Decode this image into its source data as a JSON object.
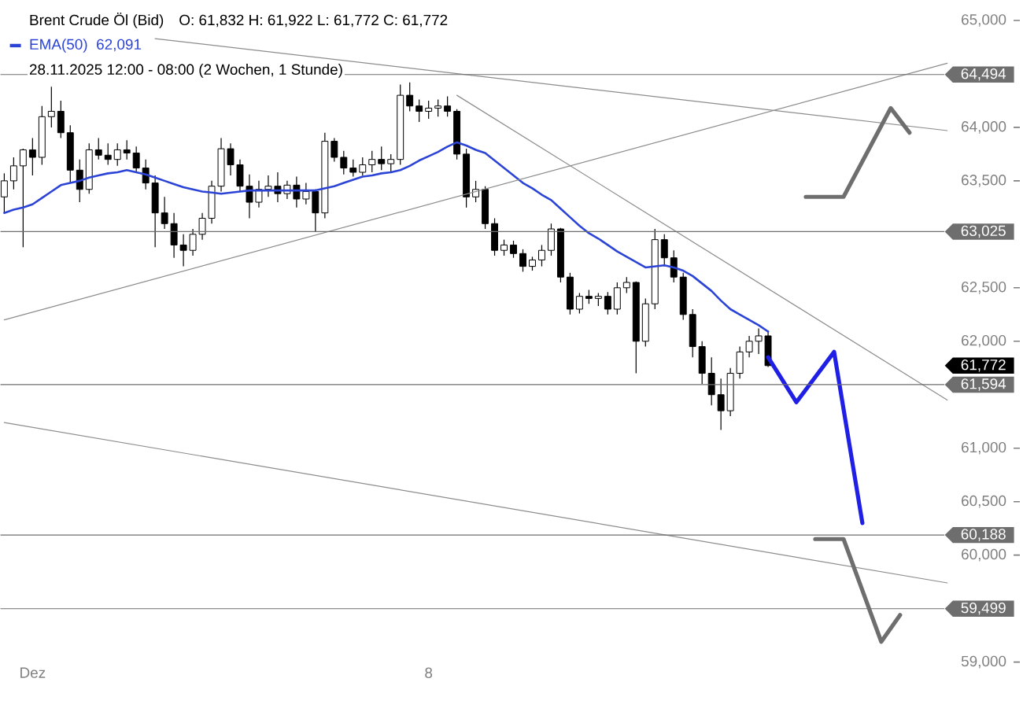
{
  "chart_data": {
    "type": "candlestick",
    "title": "Brent Crude Öl (Bid)",
    "subtitle": "O: 61,832  H: 61,922  L: 61,772  C: 61,772",
    "annotations": [
      "62,091",
      "28.11.2025 12:00 - 08:00  (2 Wochen, 1 Stunde)",
      "61,772"
    ],
    "legend": "top left",
    "categories": [
      null,
      null,
      null,
      "Dez",
      null,
      null,
      null,
      null,
      null,
      null,
      null,
      null,
      null,
      null,
      null,
      null,
      null,
      null,
      null,
      null,
      null,
      null,
      null,
      null,
      null,
      null,
      null,
      null,
      null,
      null,
      null,
      null,
      null,
      null,
      null,
      null,
      null,
      null,
      null,
      null,
      null,
      null,
      null,
      null,
      null,
      "8",
      null,
      null,
      null,
      null,
      null,
      null,
      null,
      null,
      null,
      null,
      null,
      null,
      null,
      null,
      null,
      null,
      null,
      null,
      null,
      null,
      null,
      null,
      null,
      null,
      null,
      null,
      null,
      null,
      null,
      null,
      null,
      null,
      null,
      null,
      null,
      null,
      null,
      null,
      null,
      null,
      null,
      null,
      null,
      null,
      null,
      null,
      null,
      null,
      null,
      null,
      null,
      null,
      null,
      null,
      null,
      null,
      null,
      null,
      null,
      null,
      null,
      null
    ],
    "ylim": [
      59000,
      65000
    ],
    "yticks": [
      {
        "value": 59000,
        "label": "59,000"
      },
      {
        "value": 60000,
        "label": "60,000"
      },
      {
        "value": 60500,
        "label": "60,500"
      },
      {
        "value": 61000,
        "label": "61,000"
      },
      {
        "value": 62000,
        "label": "62,000"
      },
      {
        "value": 62500,
        "label": "62,500"
      },
      {
        "value": 63500,
        "label": "63,500"
      },
      {
        "value": 64000,
        "label": "64,000"
      },
      {
        "value": 65000,
        "label": "65,000"
      }
    ],
    "ref_lines": [
      {
        "axis": "y",
        "value": 64494,
        "label": "64,494",
        "color": "#6e6e6e"
      },
      {
        "axis": "y",
        "value": 63025,
        "label": "63,025",
        "color": "#6e6e6e"
      },
      {
        "axis": "y",
        "value": 61594,
        "label": "61,594",
        "color": "#6e6e6e"
      },
      {
        "axis": "y",
        "value": 60188,
        "label": "60,188",
        "color": "#6e6e6e"
      },
      {
        "axis": "y",
        "value": 59499,
        "label": "59,499",
        "color": "#6e6e6e"
      }
    ],
    "ohlc": [
      [
        63350,
        63570,
        63200,
        63500
      ],
      [
        63500,
        63720,
        63420,
        63640
      ],
      [
        63640,
        63800,
        62880,
        63790
      ],
      [
        63790,
        63900,
        63550,
        63720
      ],
      [
        63720,
        64200,
        63650,
        64100
      ],
      [
        64100,
        64380,
        64000,
        64150
      ],
      [
        64150,
        64250,
        63900,
        63950
      ],
      [
        63950,
        64020,
        63480,
        63600
      ],
      [
        63600,
        63700,
        63300,
        63420
      ],
      [
        63420,
        63850,
        63380,
        63790
      ],
      [
        63790,
        63900,
        63700,
        63740
      ],
      [
        63740,
        63850,
        63650,
        63700
      ],
      [
        63700,
        63850,
        63640,
        63790
      ],
      [
        63790,
        63880,
        63700,
        63760
      ],
      [
        63760,
        63820,
        63580,
        63620
      ],
      [
        63620,
        63700,
        63420,
        63480
      ],
      [
        63480,
        63550,
        62880,
        63200
      ],
      [
        63200,
        63350,
        63050,
        63100
      ],
      [
        63100,
        63200,
        62780,
        62900
      ],
      [
        62900,
        63000,
        62700,
        62850
      ],
      [
        62850,
        63050,
        62800,
        63000
      ],
      [
        63000,
        63200,
        62950,
        63150
      ],
      [
        63150,
        63500,
        63100,
        63450
      ],
      [
        63450,
        63900,
        63400,
        63800
      ],
      [
        63800,
        63850,
        63550,
        63650
      ],
      [
        63650,
        63700,
        63400,
        63450
      ],
      [
        63450,
        63560,
        63150,
        63300
      ],
      [
        63300,
        63500,
        63250,
        63420
      ],
      [
        63420,
        63550,
        63350,
        63450
      ],
      [
        63450,
        63580,
        63300,
        63380
      ],
      [
        63380,
        63500,
        63330,
        63460
      ],
      [
        63460,
        63540,
        63250,
        63330
      ],
      [
        63330,
        63480,
        63280,
        63400
      ],
      [
        63400,
        63420,
        63020,
        63200
      ],
      [
        63200,
        63950,
        63150,
        63870
      ],
      [
        63870,
        63900,
        63680,
        63720
      ],
      [
        63720,
        63780,
        63560,
        63620
      ],
      [
        63620,
        63700,
        63540,
        63580
      ],
      [
        63580,
        63720,
        63550,
        63650
      ],
      [
        63650,
        63780,
        63580,
        63700
      ],
      [
        63700,
        63820,
        63600,
        63660
      ],
      [
        63660,
        63750,
        63580,
        63700
      ],
      [
        63700,
        64400,
        63650,
        64300
      ],
      [
        64300,
        64420,
        64150,
        64200
      ],
      [
        64200,
        64260,
        64050,
        64150
      ],
      [
        64150,
        64250,
        64080,
        64180
      ],
      [
        64180,
        64260,
        64100,
        64200
      ],
      [
        64200,
        64290,
        64100,
        64150
      ],
      [
        64150,
        64170,
        63700,
        63750
      ],
      [
        63750,
        63800,
        63250,
        63350
      ],
      [
        63350,
        63500,
        63300,
        63420
      ],
      [
        63420,
        63450,
        63050,
        63100
      ],
      [
        63100,
        63150,
        62800,
        62850
      ],
      [
        62850,
        62950,
        62800,
        62900
      ],
      [
        62900,
        62940,
        62780,
        62820
      ],
      [
        62820,
        62860,
        62650,
        62700
      ],
      [
        62700,
        62790,
        62660,
        62760
      ],
      [
        62760,
        62900,
        62700,
        62850
      ],
      [
        62850,
        63100,
        62800,
        63050
      ],
      [
        63050,
        63060,
        62550,
        62600
      ],
      [
        62600,
        62640,
        62250,
        62300
      ],
      [
        62300,
        62450,
        62260,
        62420
      ],
      [
        62420,
        62480,
        62350,
        62400
      ],
      [
        62400,
        62450,
        62330,
        62420
      ],
      [
        62420,
        62460,
        62250,
        62300
      ],
      [
        62300,
        62550,
        62250,
        62500
      ],
      [
        62500,
        62600,
        62450,
        62550
      ],
      [
        62550,
        62560,
        61700,
        62000
      ],
      [
        62000,
        62400,
        61950,
        62350
      ],
      [
        62350,
        63050,
        62300,
        62950
      ],
      [
        62950,
        63000,
        62700,
        62780
      ],
      [
        62780,
        62850,
        62550,
        62600
      ],
      [
        62600,
        62640,
        62200,
        62250
      ],
      [
        62250,
        62300,
        61850,
        61950
      ],
      [
        61950,
        62000,
        61600,
        61700
      ],
      [
        61700,
        61850,
        61400,
        61500
      ],
      [
        61500,
        61650,
        61170,
        61350
      ],
      [
        61350,
        61750,
        61300,
        61700
      ],
      [
        61700,
        61950,
        61650,
        61900
      ],
      [
        61900,
        62050,
        61850,
        62000
      ],
      [
        62000,
        62120,
        61880,
        62050
      ],
      [
        62050,
        62100,
        61760,
        61772
      ],
      null,
      null,
      null,
      null,
      null,
      null,
      null,
      null,
      null,
      null,
      null,
      null,
      null,
      null,
      null,
      null,
      null,
      null,
      null,
      null,
      null,
      null,
      null,
      null,
      null,
      null
    ],
    "series": [
      {
        "type": "line",
        "name": "EMA(50)",
        "color": "#2b44d6",
        "values": [
          63200,
          63230,
          63250,
          63280,
          63340,
          63400,
          63460,
          63480,
          63500,
          63530,
          63550,
          63570,
          63580,
          63600,
          63580,
          63560,
          63530,
          63500,
          63470,
          63440,
          63420,
          63400,
          63390,
          63380,
          63390,
          63400,
          63410,
          63410,
          63410,
          63410,
          63410,
          63410,
          63410,
          63410,
          63430,
          63450,
          63480,
          63510,
          63540,
          63550,
          63570,
          63580,
          63600,
          63640,
          63690,
          63730,
          63770,
          63820,
          63860,
          63830,
          63790,
          63760,
          63690,
          63620,
          63550,
          63480,
          63430,
          63370,
          63320,
          63240,
          63160,
          63080,
          63010,
          62960,
          62900,
          62840,
          62790,
          62740,
          62690,
          62700,
          62710,
          62690,
          62660,
          62610,
          62540,
          62470,
          62380,
          62300,
          62250,
          62200,
          62150,
          62090,
          null,
          null,
          null,
          null,
          null,
          null,
          null,
          null,
          null,
          null,
          null,
          null,
          null,
          null,
          null,
          null,
          null,
          null,
          null,
          null,
          null,
          null,
          null,
          null,
          null,
          null
        ]
      },
      {
        "type": "line",
        "color": "#8c8c8c",
        "values": [
          62200,
          null,
          null,
          null,
          null,
          null,
          null,
          null,
          null,
          null,
          null,
          null,
          null,
          null,
          null,
          null,
          null,
          null,
          null,
          null,
          null,
          null,
          null,
          null,
          null,
          null,
          null,
          null,
          null,
          null,
          null,
          null,
          null,
          null,
          null,
          null,
          null,
          null,
          null,
          null,
          null,
          null,
          null,
          null,
          null,
          null,
          null,
          null,
          null,
          null,
          null,
          null,
          null,
          null,
          null,
          null,
          null,
          null,
          null,
          null,
          null,
          null,
          null,
          null,
          null,
          null,
          null,
          null,
          null,
          null,
          null,
          null,
          null,
          null,
          null,
          null,
          null,
          null,
          null,
          null,
          null,
          null,
          null,
          null,
          null,
          null,
          null,
          null,
          null,
          null,
          null,
          null,
          null,
          null,
          null,
          null,
          null,
          null,
          null,
          null,
          64600,
          null,
          null,
          null,
          null,
          null,
          null,
          null
        ]
      },
      {
        "type": "line",
        "color": "#8c8c8c",
        "values": [
          null,
          null,
          null,
          null,
          null,
          null,
          null,
          null,
          null,
          null,
          null,
          null,
          null,
          null,
          null,
          null,
          64830,
          null,
          null,
          null,
          null,
          null,
          null,
          null,
          null,
          null,
          null,
          null,
          null,
          null,
          null,
          null,
          null,
          null,
          null,
          null,
          null,
          null,
          null,
          null,
          null,
          null,
          null,
          null,
          null,
          null,
          null,
          null,
          null,
          null,
          null,
          null,
          null,
          null,
          null,
          null,
          null,
          null,
          null,
          null,
          null,
          null,
          null,
          null,
          null,
          null,
          null,
          null,
          null,
          null,
          null,
          null,
          null,
          null,
          null,
          null,
          null,
          null,
          null,
          null,
          null,
          null,
          null,
          null,
          null,
          null,
          null,
          null,
          null,
          null,
          null,
          null,
          null,
          null,
          null,
          null,
          null,
          null,
          null,
          null,
          63970,
          null,
          null,
          null,
          null,
          null,
          null,
          null
        ]
      },
      {
        "type": "line",
        "color": "#8c8c8c",
        "values": [
          null,
          null,
          null,
          null,
          null,
          null,
          null,
          null,
          null,
          null,
          null,
          null,
          null,
          null,
          null,
          null,
          null,
          null,
          null,
          null,
          null,
          null,
          null,
          null,
          null,
          null,
          null,
          null,
          null,
          null,
          null,
          null,
          null,
          null,
          null,
          null,
          null,
          null,
          null,
          null,
          null,
          null,
          null,
          null,
          null,
          null,
          null,
          null,
          64300,
          null,
          null,
          null,
          null,
          null,
          null,
          null,
          null,
          null,
          null,
          null,
          null,
          null,
          null,
          null,
          null,
          null,
          null,
          null,
          null,
          null,
          null,
          null,
          null,
          null,
          null,
          null,
          null,
          null,
          null,
          null,
          null,
          null,
          null,
          null,
          null,
          null,
          null,
          null,
          null,
          null,
          null,
          null,
          null,
          null,
          null,
          null,
          null,
          null,
          null,
          null,
          61450,
          null,
          null,
          null,
          null,
          null,
          null,
          null
        ]
      },
      {
        "type": "line",
        "color": "#8c8c8c",
        "values": [
          61240,
          null,
          null,
          null,
          null,
          null,
          null,
          null,
          null,
          null,
          null,
          null,
          null,
          null,
          null,
          null,
          null,
          null,
          null,
          null,
          null,
          null,
          null,
          null,
          null,
          null,
          null,
          null,
          null,
          null,
          null,
          null,
          null,
          null,
          null,
          null,
          null,
          null,
          null,
          null,
          null,
          null,
          null,
          null,
          null,
          null,
          null,
          null,
          null,
          null,
          null,
          null,
          null,
          null,
          null,
          null,
          null,
          null,
          null,
          null,
          null,
          null,
          null,
          null,
          null,
          null,
          null,
          null,
          null,
          null,
          null,
          null,
          null,
          null,
          null,
          null,
          null,
          null,
          null,
          null,
          null,
          null,
          null,
          null,
          null,
          null,
          null,
          null,
          null,
          null,
          null,
          null,
          null,
          null,
          null,
          null,
          null,
          null,
          null,
          null,
          59740,
          null,
          null,
          null,
          null,
          null,
          null,
          null
        ]
      },
      {
        "type": "line",
        "color": "#1f1fe6",
        "values": [
          null,
          null,
          null,
          null,
          null,
          null,
          null,
          null,
          null,
          null,
          null,
          null,
          null,
          null,
          null,
          null,
          null,
          null,
          null,
          null,
          null,
          null,
          null,
          null,
          null,
          null,
          null,
          null,
          null,
          null,
          null,
          null,
          null,
          null,
          null,
          null,
          null,
          null,
          null,
          null,
          null,
          null,
          null,
          null,
          null,
          null,
          null,
          null,
          null,
          null,
          null,
          null,
          null,
          null,
          null,
          null,
          null,
          null,
          null,
          null,
          null,
          null,
          null,
          null,
          null,
          null,
          null,
          null,
          null,
          null,
          null,
          null,
          null,
          null,
          null,
          null,
          null,
          null,
          null,
          null,
          null,
          61850,
          null,
          null,
          61430,
          null,
          null,
          null,
          61900,
          null,
          null,
          60300,
          null,
          null,
          null,
          null,
          null,
          null,
          null,
          null,
          null,
          null,
          null,
          null,
          null,
          null,
          null,
          null
        ]
      },
      {
        "type": "line",
        "color": "#6e6e6e",
        "values": [
          null,
          null,
          null,
          null,
          null,
          null,
          null,
          null,
          null,
          null,
          null,
          null,
          null,
          null,
          null,
          null,
          null,
          null,
          null,
          null,
          null,
          null,
          null,
          null,
          null,
          null,
          null,
          null,
          null,
          null,
          null,
          null,
          null,
          null,
          null,
          null,
          null,
          null,
          null,
          null,
          null,
          null,
          null,
          null,
          null,
          null,
          null,
          null,
          null,
          null,
          null,
          null,
          null,
          null,
          null,
          null,
          null,
          null,
          null,
          null,
          null,
          null,
          null,
          null,
          null,
          null,
          null,
          null,
          null,
          null,
          null,
          null,
          null,
          null,
          null,
          null,
          null,
          null,
          null,
          null,
          null,
          null,
          null,
          null,
          null,
          63350,
          null,
          null,
          null,
          63350,
          null,
          null,
          null,
          null,
          64180,
          null,
          63950,
          null,
          null,
          null,
          null,
          null,
          null,
          null,
          null,
          null,
          null,
          null
        ]
      },
      {
        "type": "line",
        "color": "#6e6e6e",
        "values": [
          null,
          null,
          null,
          null,
          null,
          null,
          null,
          null,
          null,
          null,
          null,
          null,
          null,
          null,
          null,
          null,
          null,
          null,
          null,
          null,
          null,
          null,
          null,
          null,
          null,
          null,
          null,
          null,
          null,
          null,
          null,
          null,
          null,
          null,
          null,
          null,
          null,
          null,
          null,
          null,
          null,
          null,
          null,
          null,
          null,
          null,
          null,
          null,
          null,
          null,
          null,
          null,
          null,
          null,
          null,
          null,
          null,
          null,
          null,
          null,
          null,
          null,
          null,
          null,
          null,
          null,
          null,
          null,
          null,
          null,
          null,
          null,
          null,
          null,
          null,
          null,
          null,
          null,
          null,
          null,
          null,
          null,
          null,
          null,
          null,
          null,
          60150,
          null,
          null,
          60150,
          null,
          null,
          null,
          59190,
          null,
          59440,
          null,
          null,
          null,
          null,
          null,
          null,
          null,
          null,
          null,
          null,
          null,
          null
        ]
      }
    ]
  }
}
